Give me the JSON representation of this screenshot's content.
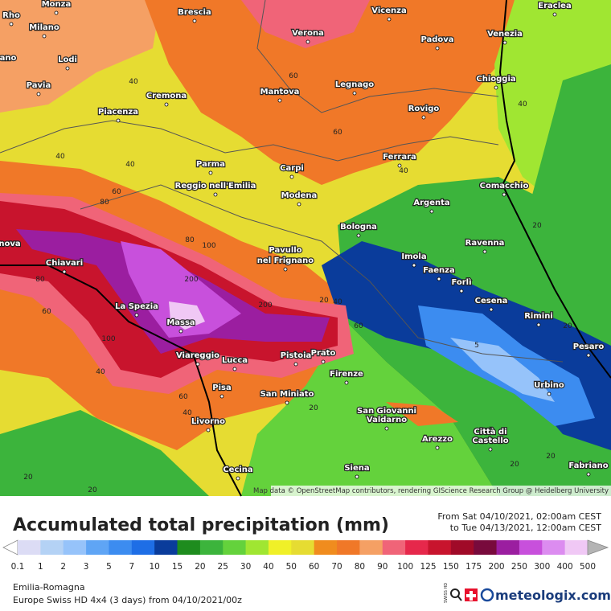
{
  "map": {
    "cities": [
      "Monza",
      "Brescia",
      "Vicenza",
      "Eraclea",
      "Rho",
      "Milano",
      "Verona",
      "Padova",
      "Venezia",
      "ano",
      "Lodi",
      "Pavia",
      "Legnago",
      "Chioggia",
      "Mantova",
      "Cremona",
      "Piacenza",
      "Rovigo",
      "Ferrara",
      "Parma",
      "Carpi",
      "Comacchio",
      "Reggio nell'Emilia",
      "Modena",
      "Argenta",
      "Bologna",
      "nova",
      "Ravenna",
      "Pavullo",
      "nel Frignano",
      "Imola",
      "Chiavari",
      "Faenza",
      "Forlì",
      "Cesena",
      "La Spezia",
      "Rimini",
      "Massa",
      "Pesaro",
      "Prato",
      "Pistoia",
      "Viareggio",
      "Lucca",
      "Firenze",
      "Urbino",
      "Pisa",
      "San Miniato",
      "San Giovanni",
      "Valdarno",
      "Livorno",
      "Città di",
      "Castello",
      "Arezzo",
      "Siena",
      "Cecina",
      "Fabriano"
    ],
    "contour_labels": [
      "60",
      "40",
      "60",
      "40",
      "40",
      "40",
      "60",
      "40",
      "80",
      "20",
      "80",
      "100",
      "80",
      "60",
      "40",
      "200",
      "200",
      "100",
      "20",
      "60",
      "5",
      "20",
      "60",
      "40",
      "20",
      "20",
      "20",
      "20",
      "40",
      "20"
    ],
    "attribution": "Map data © OpenStreetMap contributors, rendering GIScience Research Group @ Heidelberg University"
  },
  "header": {
    "title": "Accumulated total precipitation (mm)",
    "from": "From Sat 04/10/2021, 02:00am CEST",
    "to": "to Tue 04/13/2021, 12:00am CEST"
  },
  "legend": {
    "labels": [
      0.1,
      1,
      2,
      3,
      5,
      7,
      10,
      15,
      20,
      25,
      30,
      40,
      50,
      60,
      70,
      80,
      90,
      100,
      125,
      150,
      175,
      200,
      250,
      300,
      400,
      500
    ],
    "colors": [
      "#ffffff",
      "#dcdcf5",
      "#b4d2f5",
      "#96c3fa",
      "#5fa5f5",
      "#3c8cf0",
      "#1e6ee6",
      "#0a3c9b",
      "#1e8c1e",
      "#3cb43c",
      "#64d23c",
      "#a0e632",
      "#f0f028",
      "#e6dc32",
      "#f08c1e",
      "#f07828",
      "#f5a064",
      "#f06478",
      "#e6284b",
      "#c8142d",
      "#a00a28",
      "#780a3c",
      "#9b1ea0",
      "#c850dc",
      "#dc8cf0",
      "#f0c8f5",
      "#f5f0fa",
      "#b4b4b4"
    ]
  },
  "footer": {
    "region": "Emilia-Romagna",
    "model": "Europe Swiss HD 4x4 (3 days) from 04/10/2021/00z",
    "badge": "SWISS HD",
    "brand": "meteologix.com"
  }
}
